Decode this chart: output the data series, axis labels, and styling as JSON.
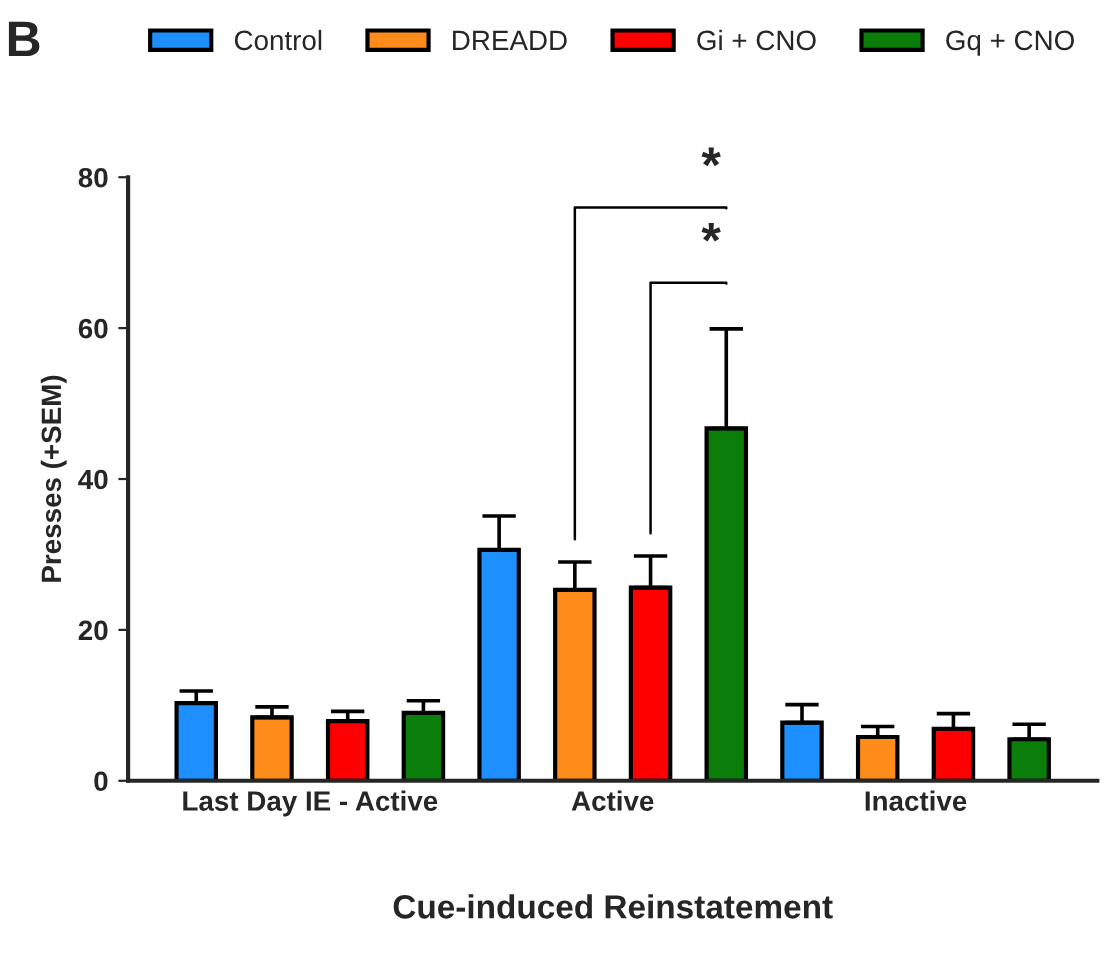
{
  "chart_data": {
    "type": "bar",
    "xlabel": "Cue-induced Reinstatement",
    "ylabel": "Presses (+SEM)",
    "categories": [
      "Last Day IE - Active",
      "Active",
      "Inactive"
    ],
    "series": [
      {
        "name": "Control",
        "color": "#1e8fff",
        "values": [
          10.3,
          30.6,
          7.7
        ],
        "errors": [
          [
            10.3,
            11.9
          ],
          [
            30.6,
            35.1
          ],
          [
            7.7,
            10.1
          ]
        ]
      },
      {
        "name": "DREADD",
        "color": "#ff8c1a",
        "values": [
          8.4,
          25.3,
          5.8
        ],
        "errors": [
          [
            8.4,
            9.8
          ],
          [
            25.3,
            29.0
          ],
          [
            5.8,
            7.2
          ]
        ]
      },
      {
        "name": "Gi + CNO",
        "color": "#ff0000",
        "values": [
          7.9,
          25.6,
          6.9
        ],
        "errors": [
          [
            7.9,
            9.2
          ],
          [
            25.6,
            29.8
          ],
          [
            6.9,
            8.9
          ]
        ]
      },
      {
        "name": "Gq + CNO",
        "color": "#0a7d0a",
        "values": [
          9.0,
          46.7,
          5.5
        ],
        "errors": [
          [
            9.0,
            10.6
          ],
          [
            46.7,
            59.9
          ],
          [
            5.5,
            7.5
          ]
        ]
      }
    ],
    "ylim": [
      0,
      80
    ],
    "yticks": [
      0,
      20,
      40,
      60,
      80
    ],
    "grid": false,
    "legend": "top",
    "annotations": [
      "B",
      "*",
      "*"
    ]
  }
}
